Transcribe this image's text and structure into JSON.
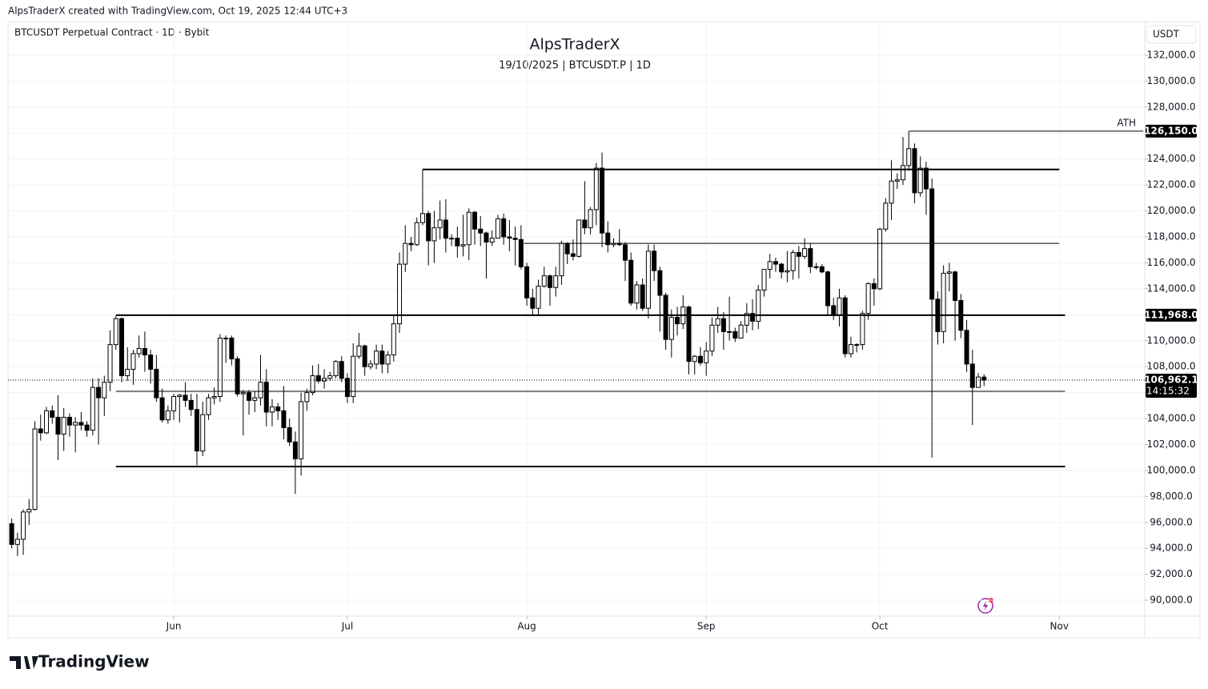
{
  "header": {
    "caption": "AlpsTraderX created with TradingView.com, Oct 19, 2025 12:44 UTC+3",
    "brand": "TradingView"
  },
  "chart_data": {
    "type": "candlestick",
    "symbol": "BTCUSDT Perpetual Contract · 1D · Bybit",
    "title": "AlpsTraderX",
    "subtitle": "19/10/2025 | BTCUSDT.P | 1D",
    "currency": "USDT",
    "up_color": "#ffffff",
    "down_color": "#000000",
    "wick_color": "#000000",
    "grid": true,
    "xlim": [
      -0.64,
      195.77
    ],
    "xticks": [
      {
        "value": 28,
        "label": "Jun"
      },
      {
        "value": 58,
        "label": "Jul"
      },
      {
        "value": 89,
        "label": "Aug"
      },
      {
        "value": 120,
        "label": "Sep"
      },
      {
        "value": 150,
        "label": "Oct"
      },
      {
        "value": 181,
        "label": "Nov"
      }
    ],
    "ylim": [
      88770,
      134530
    ],
    "yticks": [
      {
        "value": 90000,
        "label": "90,000.0"
      },
      {
        "value": 92000,
        "label": "92,000.0"
      },
      {
        "value": 94000,
        "label": "94,000.0"
      },
      {
        "value": 96000,
        "label": "96,000.0"
      },
      {
        "value": 98000,
        "label": "98,000.0"
      },
      {
        "value": 100000,
        "label": "100,000.0"
      },
      {
        "value": 102000,
        "label": "102,000.0"
      },
      {
        "value": 104000,
        "label": "104,000.0"
      },
      {
        "value": 106000,
        "label": "106,000.0"
      },
      {
        "value": 108000,
        "label": "108,000.0"
      },
      {
        "value": 110000,
        "label": "110,000.0"
      },
      {
        "value": 112000,
        "label": "112,000.0"
      },
      {
        "value": 114000,
        "label": "114,000.0"
      },
      {
        "value": 116000,
        "label": "116,000.0"
      },
      {
        "value": 118000,
        "label": "118,000.0"
      },
      {
        "value": 120000,
        "label": "120,000.0"
      },
      {
        "value": 122000,
        "label": "122,000.0"
      },
      {
        "value": 124000,
        "label": "124,000.0"
      },
      {
        "value": 126000,
        "label": "126,000.0"
      },
      {
        "value": 128000,
        "label": "128,000.0"
      },
      {
        "value": 130000,
        "label": "130,000.0"
      },
      {
        "value": 132000,
        "label": "132,000.0"
      }
    ],
    "levels": [
      {
        "value": 123200,
        "start": 71,
        "end": 181,
        "width": 2
      },
      {
        "value": 117500,
        "start": 88.5,
        "end": 181,
        "width": 1
      },
      {
        "value": 111968,
        "label": "111,968.0",
        "start": 18,
        "end": 182,
        "width": 2
      },
      {
        "value": 106100,
        "start": 18,
        "end": 182,
        "width": 1
      },
      {
        "value": 100300,
        "start": 18,
        "end": 182,
        "width": 2
      },
      {
        "value": 126150,
        "label": "126,150.0",
        "text": "ATH",
        "start": 155,
        "end": 195.5,
        "width": 1
      }
    ],
    "last_price": {
      "value": 106962.1,
      "label": "106,962.1",
      "countdown": "14:15:32"
    },
    "candles": [
      [
        95900,
        96300,
        94000,
        94300
      ],
      [
        94300,
        95200,
        93400,
        94700
      ],
      [
        94700,
        97000,
        93500,
        96800
      ],
      [
        96800,
        97800,
        95800,
        97000
      ],
      [
        97000,
        103800,
        96900,
        103200
      ],
      [
        103200,
        104300,
        102300,
        102900
      ],
      [
        102900,
        104900,
        102800,
        104600
      ],
      [
        104600,
        105000,
        103600,
        104100
      ],
      [
        104100,
        105800,
        100800,
        102800
      ],
      [
        102800,
        104800,
        101500,
        104100
      ],
      [
        104100,
        104400,
        102600,
        103500
      ],
      [
        103500,
        104100,
        101400,
        103700
      ],
      [
        103700,
        104500,
        103100,
        103500
      ],
      [
        103500,
        103800,
        102600,
        103100
      ],
      [
        103100,
        107100,
        102700,
        106400
      ],
      [
        106400,
        107100,
        102000,
        105600
      ],
      [
        105600,
        107300,
        104200,
        106800
      ],
      [
        106800,
        110800,
        106100,
        109700
      ],
      [
        109700,
        111900,
        109300,
        111700
      ],
      [
        111700,
        111800,
        106800,
        107300
      ],
      [
        107300,
        109500,
        106900,
        107800
      ],
      [
        107800,
        109300,
        106600,
        109000
      ],
      [
        109000,
        110400,
        108700,
        109400
      ],
      [
        109400,
        110700,
        107600,
        108900
      ],
      [
        108900,
        109300,
        106700,
        107800
      ],
      [
        107800,
        108900,
        105300,
        105600
      ],
      [
        105600,
        106300,
        103700,
        103900
      ],
      [
        103900,
        105000,
        103600,
        104600
      ],
      [
        104600,
        105900,
        103900,
        105700
      ],
      [
        105700,
        105900,
        103700,
        105800
      ],
      [
        105800,
        106800,
        104900,
        105400
      ],
      [
        105400,
        105900,
        104200,
        104700
      ],
      [
        104700,
        105900,
        100400,
        101500
      ],
      [
        101500,
        105300,
        101100,
        104300
      ],
      [
        104300,
        105900,
        103900,
        105600
      ],
      [
        105600,
        106400,
        105100,
        105700
      ],
      [
        105700,
        110500,
        105300,
        110200
      ],
      [
        110200,
        110400,
        108300,
        110200
      ],
      [
        110200,
        110400,
        108100,
        108600
      ],
      [
        108600,
        108800,
        105700,
        105900
      ],
      [
        105900,
        106200,
        102700,
        106000
      ],
      [
        106000,
        106200,
        104300,
        105400
      ],
      [
        105400,
        106100,
        104500,
        105600
      ],
      [
        105600,
        108900,
        105000,
        106800
      ],
      [
        106800,
        107800,
        103400,
        104500
      ],
      [
        104500,
        105500,
        103400,
        104900
      ],
      [
        104900,
        105200,
        103900,
        104600
      ],
      [
        104600,
        106500,
        102400,
        103300
      ],
      [
        103300,
        104000,
        101900,
        102200
      ],
      [
        102200,
        103000,
        98200,
        100900
      ],
      [
        100900,
        106000,
        99600,
        105300
      ],
      [
        105300,
        106300,
        104600,
        106000
      ],
      [
        106000,
        108100,
        105800,
        107300
      ],
      [
        107300,
        108200,
        106700,
        106900
      ],
      [
        106900,
        107800,
        106300,
        107100
      ],
      [
        107100,
        107600,
        106900,
        107300
      ],
      [
        107300,
        108500,
        107100,
        108400
      ],
      [
        108400,
        108800,
        106800,
        107100
      ],
      [
        107100,
        107500,
        105200,
        105700
      ],
      [
        105700,
        109800,
        105200,
        108800
      ],
      [
        108800,
        110600,
        108600,
        109600
      ],
      [
        109600,
        109700,
        107300,
        108000
      ],
      [
        108000,
        108500,
        107800,
        108200
      ],
      [
        108200,
        109700,
        107800,
        109200
      ],
      [
        109200,
        109700,
        107500,
        108200
      ],
      [
        108200,
        109200,
        107500,
        108900
      ],
      [
        108900,
        111900,
        108400,
        111300
      ],
      [
        111300,
        116800,
        110600,
        115900
      ],
      [
        115900,
        118900,
        115300,
        117500
      ],
      [
        117500,
        118000,
        116900,
        117400
      ],
      [
        117400,
        119500,
        117300,
        119100
      ],
      [
        119100,
        123200,
        118900,
        119800
      ],
      [
        119800,
        120000,
        115800,
        117700
      ],
      [
        117700,
        120000,
        116000,
        118700
      ],
      [
        118700,
        120800,
        117800,
        119300
      ],
      [
        119300,
        120900,
        116800,
        117900
      ],
      [
        117900,
        118200,
        117300,
        117900
      ],
      [
        117900,
        118800,
        116400,
        117300
      ],
      [
        117300,
        119700,
        116500,
        117400
      ],
      [
        117400,
        120200,
        116200,
        119900
      ],
      [
        119900,
        120000,
        117400,
        118600
      ],
      [
        118600,
        119600,
        117300,
        118300
      ],
      [
        118300,
        118400,
        114800,
        117600
      ],
      [
        117600,
        118500,
        117300,
        117900
      ],
      [
        117900,
        119700,
        117900,
        119400
      ],
      [
        119400,
        119800,
        117400,
        118000
      ],
      [
        118000,
        119300,
        116900,
        117900
      ],
      [
        117900,
        118800,
        115800,
        117800
      ],
      [
        117800,
        118900,
        115500,
        115700
      ],
      [
        115700,
        116000,
        112700,
        113300
      ],
      [
        113300,
        114000,
        112000,
        112500
      ],
      [
        112500,
        114700,
        112000,
        114200
      ],
      [
        114200,
        115700,
        114100,
        115000
      ],
      [
        115000,
        115100,
        112700,
        114100
      ],
      [
        114100,
        115700,
        113400,
        115000
      ],
      [
        115000,
        117700,
        114300,
        117500
      ],
      [
        117500,
        117600,
        115900,
        116700
      ],
      [
        116700,
        117800,
        116200,
        116500
      ],
      [
        116500,
        119300,
        116400,
        119300
      ],
      [
        119300,
        122300,
        118200,
        118700
      ],
      [
        118700,
        120300,
        118200,
        120100
      ],
      [
        120100,
        123700,
        118900,
        123300
      ],
      [
        123300,
        124500,
        117200,
        118300
      ],
      [
        118300,
        119200,
        116800,
        117400
      ],
      [
        117400,
        117900,
        117200,
        117500
      ],
      [
        117500,
        118600,
        117300,
        117400
      ],
      [
        117400,
        117600,
        114600,
        116200
      ],
      [
        116200,
        116800,
        112700,
        112900
      ],
      [
        112900,
        114600,
        112400,
        114300
      ],
      [
        114300,
        114800,
        112300,
        112500
      ],
      [
        112500,
        117400,
        111700,
        116900
      ],
      [
        116900,
        117400,
        114600,
        115400
      ],
      [
        115400,
        115700,
        110700,
        113500
      ],
      [
        113500,
        113700,
        109300,
        110100
      ],
      [
        110100,
        112400,
        108700,
        111800
      ],
      [
        111800,
        112600,
        110400,
        111300
      ],
      [
        111300,
        113500,
        110900,
        112600
      ],
      [
        112600,
        112700,
        107400,
        108400
      ],
      [
        108400,
        108900,
        107400,
        108800
      ],
      [
        108800,
        109500,
        108100,
        108300
      ],
      [
        108300,
        109900,
        107300,
        109200
      ],
      [
        109200,
        111800,
        108800,
        111200
      ],
      [
        111200,
        112600,
        110600,
        111700
      ],
      [
        111700,
        112200,
        109300,
        110700
      ],
      [
        110700,
        113400,
        110000,
        110700
      ],
      [
        110700,
        111000,
        109900,
        110200
      ],
      [
        110200,
        111500,
        110200,
        111200
      ],
      [
        111200,
        112900,
        110600,
        112100
      ],
      [
        112100,
        113200,
        110800,
        111500
      ],
      [
        111500,
        114300,
        110900,
        113900
      ],
      [
        113900,
        115500,
        113400,
        115500
      ],
      [
        115500,
        116700,
        114800,
        116100
      ],
      [
        116100,
        116400,
        115300,
        115900
      ],
      [
        115900,
        116000,
        114800,
        115300
      ],
      [
        115300,
        116900,
        114500,
        115400
      ],
      [
        115400,
        117000,
        114700,
        116800
      ],
      [
        116800,
        117300,
        114800,
        116500
      ],
      [
        116500,
        117900,
        116300,
        117100
      ],
      [
        117100,
        117500,
        115200,
        115700
      ],
      [
        115700,
        116000,
        115500,
        115700
      ],
      [
        115700,
        115900,
        115200,
        115300
      ],
      [
        115300,
        115400,
        111900,
        112700
      ],
      [
        112700,
        113300,
        111600,
        112000
      ],
      [
        112000,
        114000,
        111100,
        113300
      ],
      [
        113300,
        113500,
        108700,
        109000
      ],
      [
        109000,
        110300,
        108700,
        109700
      ],
      [
        109700,
        109800,
        109100,
        109700
      ],
      [
        109700,
        112300,
        109300,
        112100
      ],
      [
        112100,
        114500,
        111600,
        114400
      ],
      [
        114400,
        114800,
        112700,
        114000
      ],
      [
        114000,
        118700,
        113900,
        118600
      ],
      [
        118600,
        121000,
        118400,
        120600
      ],
      [
        120600,
        123900,
        119300,
        122300
      ],
      [
        122300,
        122900,
        121700,
        122400
      ],
      [
        122400,
        125700,
        122000,
        123500
      ],
      [
        123500,
        126150,
        123100,
        124800
      ],
      [
        124800,
        125200,
        120600,
        121400
      ],
      [
        121400,
        124200,
        121100,
        123300
      ],
      [
        123300,
        123800,
        119700,
        121700
      ],
      [
        121700,
        122500,
        101000,
        113200
      ],
      [
        113200,
        113800,
        109700,
        110700
      ],
      [
        110700,
        115800,
        109800,
        115200
      ],
      [
        115200,
        116000,
        113800,
        115300
      ],
      [
        115300,
        115400,
        110000,
        113100
      ],
      [
        113100,
        113600,
        110200,
        110800
      ],
      [
        110800,
        111600,
        107600,
        108200
      ],
      [
        108200,
        109300,
        103500,
        106400
      ],
      [
        106400,
        107500,
        106400,
        107200
      ],
      [
        107200,
        107400,
        106500,
        106962.1
      ]
    ]
  }
}
